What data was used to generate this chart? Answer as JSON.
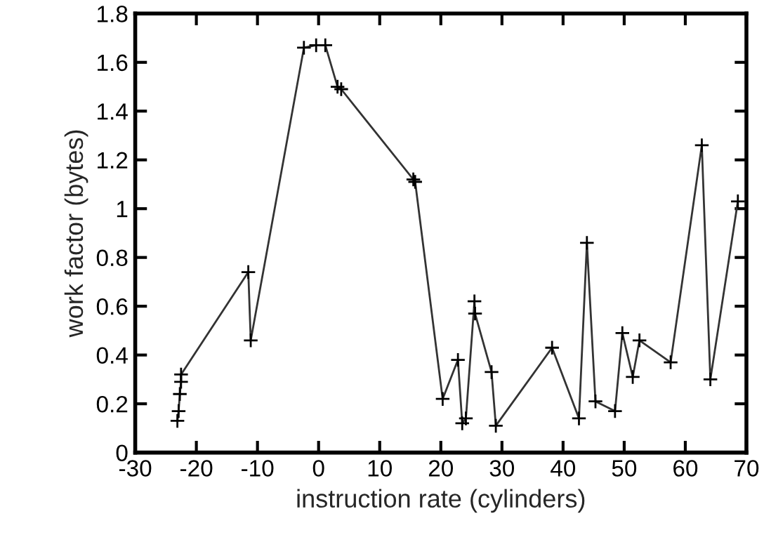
{
  "chart_data": {
    "type": "line",
    "xlabel": "instruction rate (cylinders)",
    "ylabel": "work factor (bytes)",
    "xlim": [
      -30,
      70
    ],
    "xticks": [
      -30,
      -20,
      -10,
      0,
      10,
      20,
      30,
      40,
      50,
      60,
      70
    ],
    "ylim": [
      0,
      1.8
    ],
    "yticks": [
      0,
      0.2,
      0.4,
      0.6,
      0.8,
      1,
      1.2,
      1.4,
      1.6,
      1.8
    ],
    "grid": false,
    "marker": "cross",
    "line_style": "solid",
    "series": [
      {
        "color": "#333333",
        "x": [
          -23.1,
          -22.9,
          -22.7,
          -22.5,
          -22.5,
          -11.5,
          -11.1,
          -2.4,
          -0.4,
          1.1,
          3.1,
          3.7,
          15.5,
          15.8,
          20.3,
          22.8,
          23.5,
          24.1,
          25.5,
          25.6,
          28.3,
          29.0,
          38.2,
          42.6,
          43.9,
          45.3,
          48.5,
          49.7,
          51.4,
          52.5,
          57.6,
          62.7,
          64.1,
          68.6
        ],
        "values": [
          0.13,
          0.17,
          0.24,
          0.29,
          0.32,
          0.74,
          0.46,
          1.66,
          1.67,
          1.67,
          1.5,
          1.49,
          1.12,
          1.11,
          0.22,
          0.38,
          0.12,
          0.14,
          0.62,
          0.57,
          0.33,
          0.11,
          0.43,
          0.14,
          0.86,
          0.21,
          0.17,
          0.49,
          0.31,
          0.46,
          0.37,
          1.26,
          0.3,
          1.03
        ]
      }
    ]
  }
}
